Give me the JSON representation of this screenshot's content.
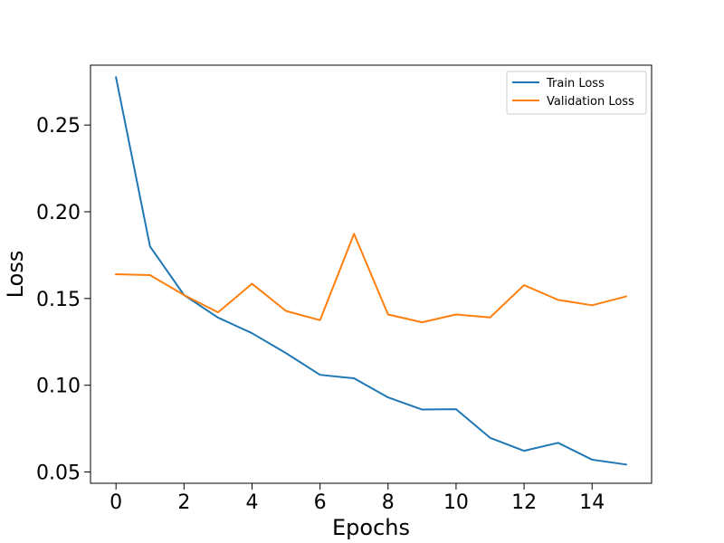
{
  "chart_data": {
    "type": "line",
    "title": "",
    "xlabel": "Epochs",
    "ylabel": "Loss",
    "xlim": [
      -0.75,
      15.75
    ],
    "ylim": [
      0.0435,
      0.2845
    ],
    "xticks": [
      0,
      2,
      4,
      6,
      8,
      10,
      12,
      14
    ],
    "yticks": [
      0.05,
      0.1,
      0.15,
      0.2,
      0.25
    ],
    "ytick_labels": [
      "0.05",
      "0.10",
      "0.15",
      "0.20",
      "0.25"
    ],
    "grid": false,
    "legend_position": "top-right",
    "x": [
      0,
      1,
      2,
      3,
      4,
      5,
      6,
      7,
      8,
      9,
      10,
      11,
      12,
      13,
      14,
      15
    ],
    "series": [
      {
        "name": "Train Loss",
        "color": "#1f77b4",
        "values": [
          0.2775,
          0.18,
          0.152,
          0.139,
          0.13,
          0.1185,
          0.106,
          0.104,
          0.093,
          0.086,
          0.0862,
          0.0697,
          0.0622,
          0.0668,
          0.0571,
          0.0543
        ]
      },
      {
        "name": "Validation Loss",
        "color": "#ff7f0e",
        "values": [
          0.164,
          0.1635,
          0.152,
          0.142,
          0.1585,
          0.1428,
          0.1375,
          0.1873,
          0.1408,
          0.1363,
          0.1408,
          0.1391,
          0.1577,
          0.1492,
          0.1461,
          0.1512
        ]
      }
    ]
  }
}
